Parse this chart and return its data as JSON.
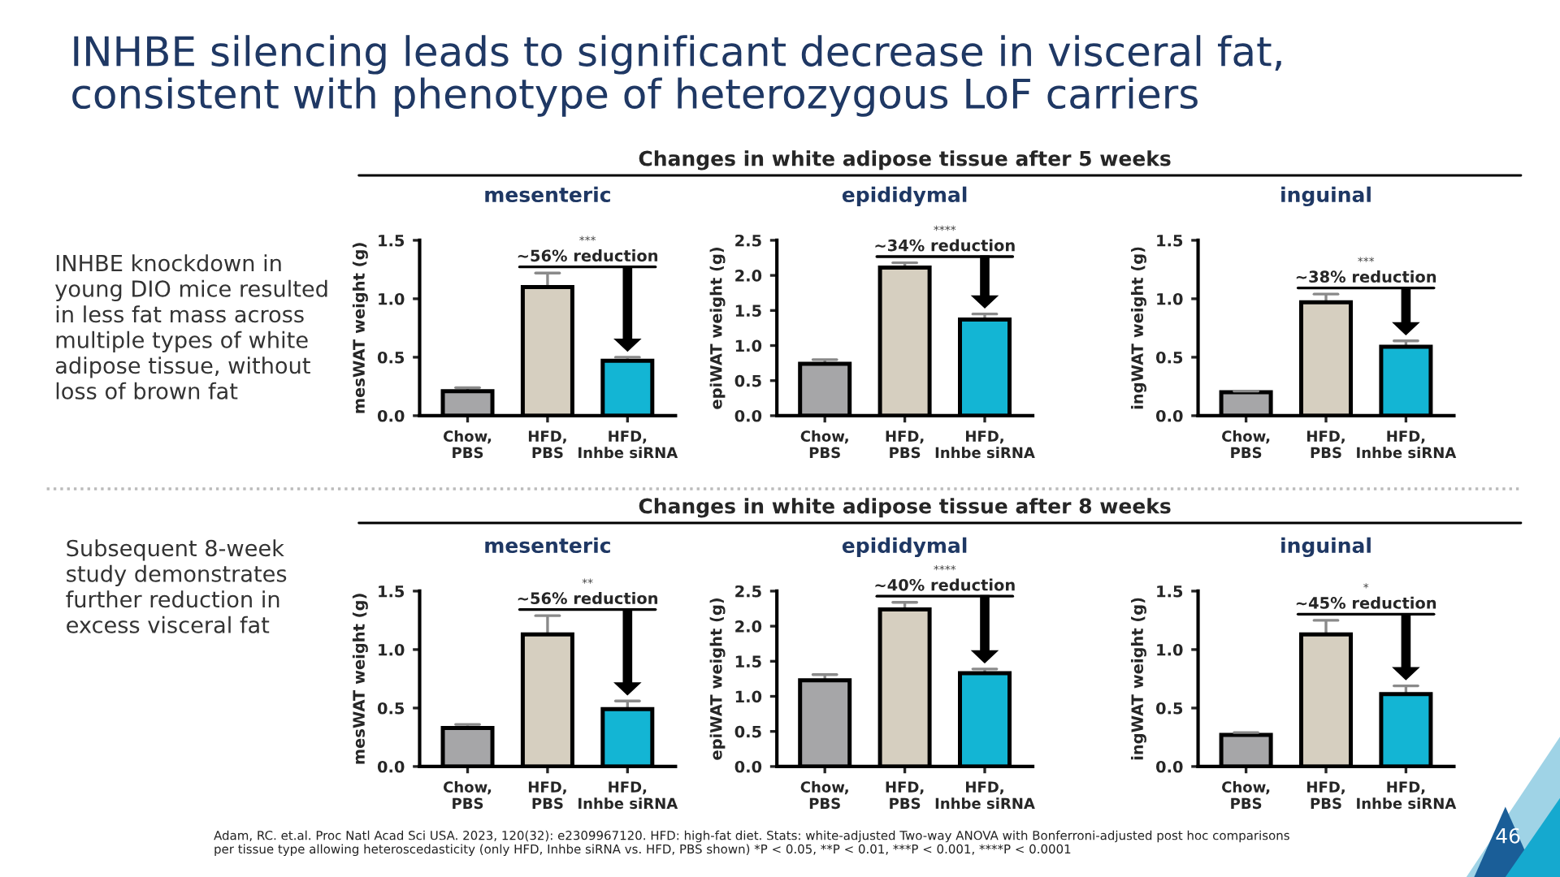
{
  "chart_data": [
    {
      "type": "bar",
      "title": "mesenteric",
      "ylabel": "mesWAT weight (g)",
      "categories": [
        "Chow,\nPBS",
        "HFD,\nPBS",
        "HFD,\nInhbe siRNA"
      ],
      "values": [
        0.21,
        1.1,
        0.47
      ],
      "colors": [
        "#a6a6a8",
        "#d6cfc0",
        "#13b5d4"
      ],
      "errors": [
        [
          0.21,
          0.24
        ],
        [
          1.1,
          1.22
        ],
        [
          0.47,
          0.5
        ]
      ],
      "ylim": [
        0,
        1.5
      ],
      "yticks": [
        {
          "value": 0,
          "label": "0.0"
        },
        0.5,
        {
          "value": 1,
          "label": "1.0"
        },
        1.5
      ],
      "grid": false,
      "annotations": [
        "***",
        "~56% reduction",
        "INHBE silencing leads to significant decrease in visceral fat,\nconsistent with phenotype of heterozygous LoF carriers",
        "INHBE knockdown in\nyoung DIO mice resulted\nin less fat mass across\nmultiple types of white\nadipose tissue, without\nloss of brown fat",
        "Adam, RC. et.al. Proc Natl Acad Sci USA. 2023, 120(32): e2309967120. HFD: high-fat diet. Stats: white-adjusted Two-way ANOVA with Bonferroni-adjusted post hoc comparisons\nper tissue type allowing heteroscedasticity (only HFD, Inhbe siRNA vs. HFD, PBS shown) *P < 0.05, **P < 0.01, ***P < 0.001, ****P < 0.0001",
        "46"
      ]
    },
    {
      "type": "bar",
      "title": "epididymal",
      "subtitle": "Changes in white adipose tissue after 5 weeks",
      "ylabel": "epiWAT weight (g)",
      "categories": [
        "Chow,\nPBS",
        "HFD,\nPBS",
        "HFD,\nInhbe siRNA"
      ],
      "values": [
        0.74,
        2.11,
        1.37
      ],
      "colors": [
        "#a6a6a8",
        "#d6cfc0",
        "#13b5d4"
      ],
      "errors": [
        [
          0.74,
          0.8
        ],
        [
          2.11,
          2.18
        ],
        [
          1.37,
          1.45
        ]
      ],
      "ylim": [
        0,
        2.5
      ],
      "yticks": [
        {
          "value": 0,
          "label": "0.0"
        },
        0.5,
        {
          "value": 1,
          "label": "1.0"
        },
        1.5,
        {
          "value": 2,
          "label": "2.0"
        },
        2.5
      ],
      "grid": false,
      "annotations": [
        "****",
        "~34% reduction"
      ]
    },
    {
      "type": "bar",
      "title": "inguinal",
      "ylabel": "ingWAT weight (g)",
      "categories": [
        "Chow,\nPBS",
        "HFD,\nPBS",
        "HFD,\nInhbe siRNA"
      ],
      "values": [
        0.2,
        0.97,
        0.59
      ],
      "colors": [
        "#a6a6a8",
        "#d6cfc0",
        "#13b5d4"
      ],
      "errors": [
        [
          0.2,
          0.21
        ],
        [
          0.97,
          1.04
        ],
        [
          0.59,
          0.64
        ]
      ],
      "ylim": [
        0,
        1.5
      ],
      "yticks": [
        {
          "value": 0,
          "label": "0.0"
        },
        0.5,
        {
          "value": 1,
          "label": "1.0"
        },
        1.5
      ],
      "grid": false,
      "annotations": [
        "***",
        "~38% reduction"
      ]
    },
    {
      "type": "bar",
      "title": "mesenteric",
      "ylabel": "mesWAT weight (g)",
      "categories": [
        "Chow,\nPBS",
        "HFD,\nPBS",
        "HFD,\nInhbe siRNA"
      ],
      "values": [
        0.33,
        1.13,
        0.49
      ],
      "colors": [
        "#a6a6a8",
        "#d6cfc0",
        "#13b5d4"
      ],
      "errors": [
        [
          0.33,
          0.36
        ],
        [
          1.13,
          1.29
        ],
        [
          0.49,
          0.56
        ]
      ],
      "ylim": [
        0,
        1.5
      ],
      "yticks": [
        {
          "value": 0,
          "label": "0.0"
        },
        0.5,
        {
          "value": 1,
          "label": "1.0"
        },
        1.5
      ],
      "grid": false,
      "annotations": [
        "**",
        "~56% reduction",
        "Subsequent 8-week\nstudy demonstrates\nfurther reduction in\nexcess visceral fat"
      ]
    },
    {
      "type": "bar",
      "title": "epididymal",
      "subtitle": "Changes in white adipose tissue after 8 weeks",
      "ylabel": "epiWAT weight (g)",
      "categories": [
        "Chow,\nPBS",
        "HFD,\nPBS",
        "HFD,\nInhbe siRNA"
      ],
      "values": [
        1.23,
        2.24,
        1.33
      ],
      "colors": [
        "#a6a6a8",
        "#d6cfc0",
        "#13b5d4"
      ],
      "errors": [
        [
          1.23,
          1.31
        ],
        [
          2.24,
          2.34
        ],
        [
          1.33,
          1.39
        ]
      ],
      "ylim": [
        0,
        2.5
      ],
      "yticks": [
        {
          "value": 0,
          "label": "0.0"
        },
        0.5,
        {
          "value": 1,
          "label": "1.0"
        },
        1.5,
        {
          "value": 2,
          "label": "2.0"
        },
        2.5
      ],
      "grid": false,
      "annotations": [
        "****",
        "~40% reduction"
      ]
    },
    {
      "type": "bar",
      "title": "inguinal",
      "ylabel": "ingWAT weight (g)",
      "categories": [
        "Chow,\nPBS",
        "HFD,\nPBS",
        "HFD,\nInhbe siRNA"
      ],
      "values": [
        0.27,
        1.13,
        0.62
      ],
      "colors": [
        "#a6a6a8",
        "#d6cfc0",
        "#13b5d4"
      ],
      "errors": [
        [
          0.27,
          0.29
        ],
        [
          1.13,
          1.25
        ],
        [
          0.62,
          0.69
        ]
      ],
      "ylim": [
        0,
        1.5
      ],
      "yticks": [
        {
          "value": 0,
          "label": "0.0"
        },
        0.5,
        {
          "value": 1,
          "label": "1.0"
        },
        1.5
      ],
      "grid": false,
      "annotations": [
        "*",
        "~45% reduction"
      ]
    }
  ]
}
